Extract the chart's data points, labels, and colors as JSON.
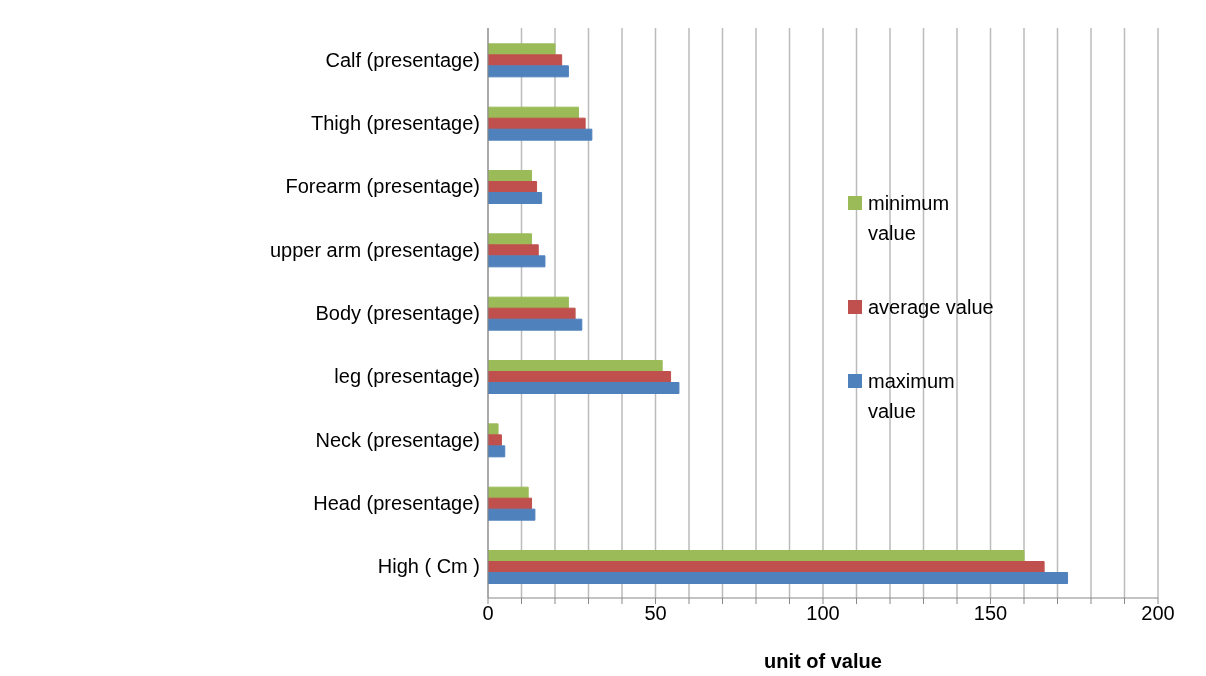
{
  "chart_data": {
    "type": "bar",
    "orientation": "horizontal",
    "xlabel": "unit of value",
    "categories": [
      "Calf (presentage)",
      "Thigh (presentage)",
      "Forearm (presentage)",
      "upper arm (presentage)",
      "Body (presentage)",
      "leg (presentage)",
      "Neck (presentage)",
      "Head (presentage)",
      "High ( Cm )"
    ],
    "series": [
      {
        "name": "minimum value",
        "color": "#9bbb59",
        "values": [
          20,
          27,
          13,
          13,
          24,
          52,
          3,
          12,
          160
        ]
      },
      {
        "name": "average value",
        "color": "#c0504d",
        "values": [
          22,
          29,
          14.5,
          15,
          26,
          54.5,
          4,
          13,
          166
        ]
      },
      {
        "name": "maximum value",
        "color": "#4f81bd",
        "values": [
          24,
          31,
          16,
          17,
          28,
          57,
          5,
          14,
          173
        ]
      }
    ],
    "xlim": [
      0,
      200
    ],
    "xticks": [
      0,
      {
        "value": 10,
        "label": null
      },
      {
        "value": 20,
        "label": null
      },
      {
        "value": 30,
        "label": null
      },
      {
        "value": 40,
        "label": null
      },
      50,
      {
        "value": 60,
        "label": null
      },
      {
        "value": 70,
        "label": null
      },
      {
        "value": 80,
        "label": null
      },
      {
        "value": 90,
        "label": null
      },
      100,
      {
        "value": 110,
        "label": null
      },
      {
        "value": 120,
        "label": null
      },
      {
        "value": 130,
        "label": null
      },
      {
        "value": 140,
        "label": null
      },
      150,
      {
        "value": 160,
        "label": null
      },
      {
        "value": 170,
        "label": null
      },
      {
        "value": 180,
        "label": null
      },
      {
        "value": 190,
        "label": null
      },
      200
    ],
    "grid": "x",
    "legend": "right"
  }
}
